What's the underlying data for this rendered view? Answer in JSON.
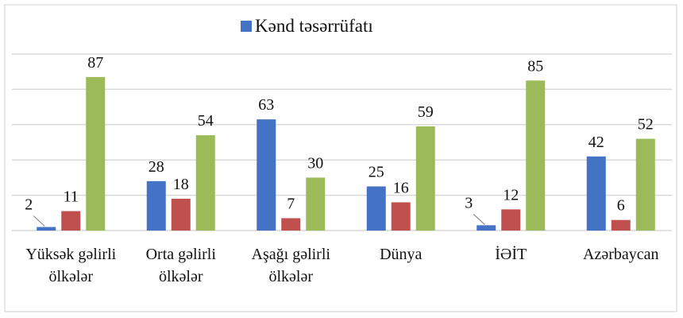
{
  "chart_data": {
    "type": "bar",
    "categories": [
      "Yüksək gəlirli ölkələr",
      "Orta gəlirli ölkələr",
      "Aşağı gəlirli ölkələr",
      "Dünya",
      "İƏİT",
      "Azərbaycan"
    ],
    "series": [
      {
        "name": "Kənd təsərrüfatı",
        "color": "#4472c4",
        "values": [
          2,
          28,
          63,
          25,
          3,
          42
        ]
      },
      {
        "color": "#c0504d",
        "values": [
          11,
          18,
          7,
          16,
          12,
          6
        ]
      },
      {
        "color": "#9bbb59",
        "values": [
          87,
          54,
          30,
          59,
          85,
          52
        ]
      }
    ],
    "ylim": [
      0,
      100
    ],
    "yticks": [
      0,
      20,
      40,
      60,
      80,
      100
    ],
    "grid": true,
    "legend": "top"
  }
}
